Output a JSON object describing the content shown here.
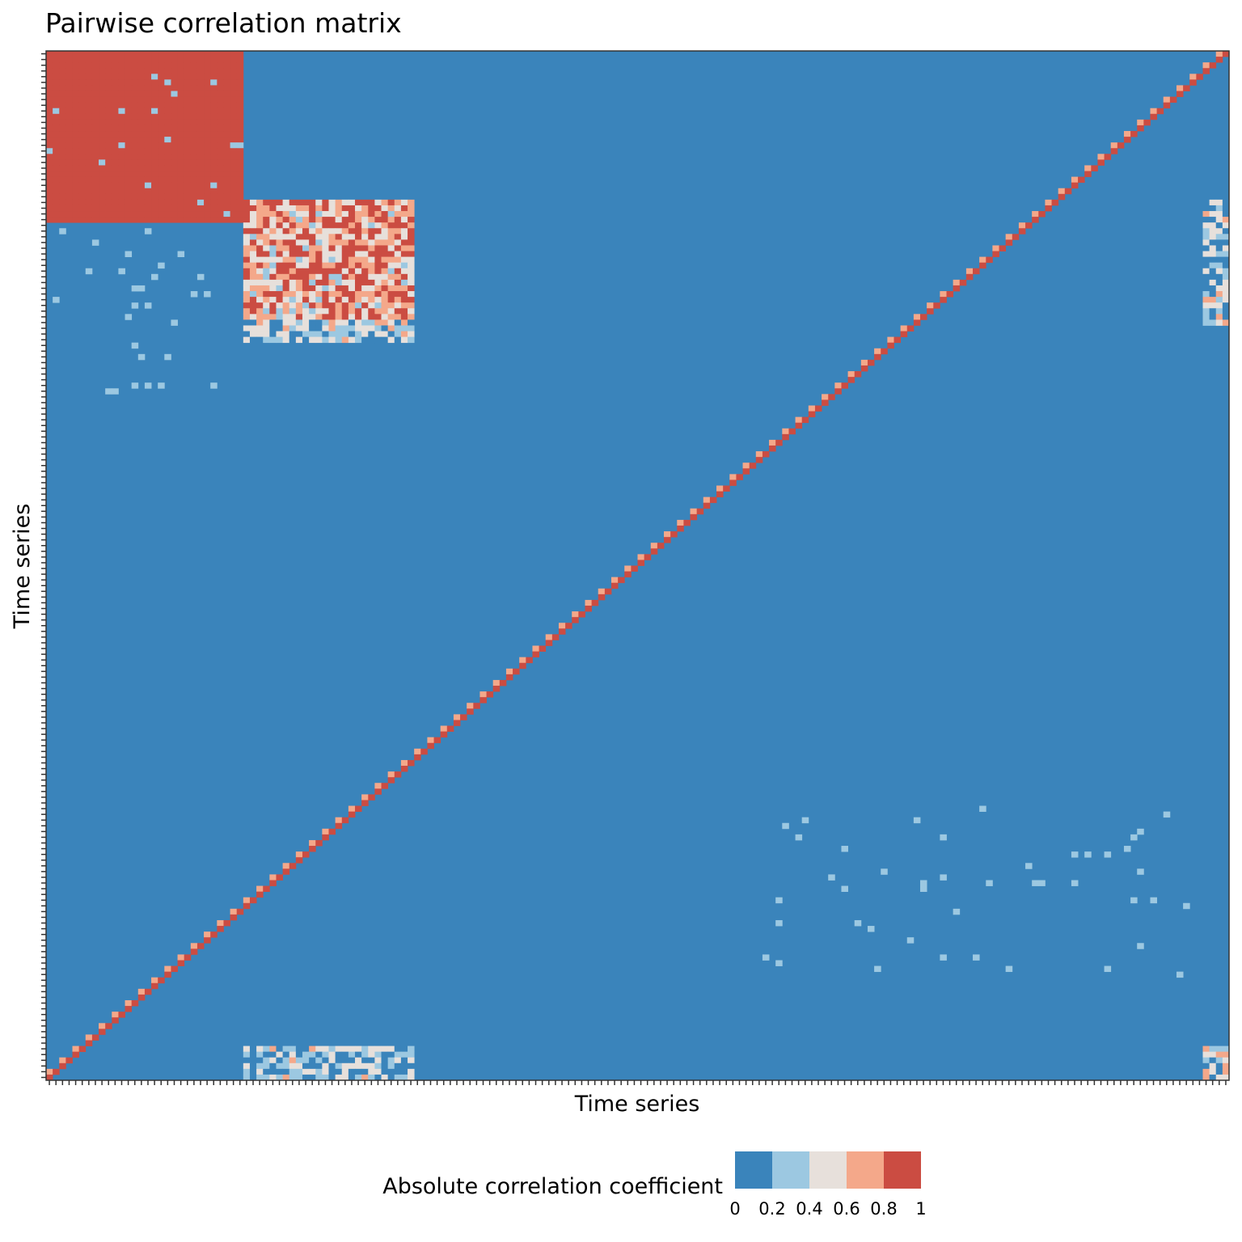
{
  "chart_data": {
    "type": "heatmap",
    "title": "Pairwise correlation matrix",
    "xlabel": "Time series",
    "ylabel": "Time series",
    "n_series": 180,
    "grid": false,
    "colorbar": {
      "title": "Absolute correlation coefficient",
      "placement": "bottom",
      "bins": [
        {
          "from": 0.0,
          "to": 0.2,
          "color": "#3A84BB"
        },
        {
          "from": 0.2,
          "to": 0.4,
          "color": "#9CC8E1"
        },
        {
          "from": 0.4,
          "to": 0.6,
          "color": "#E7E0DB"
        },
        {
          "from": 0.6,
          "to": 0.8,
          "color": "#F4A88A"
        },
        {
          "from": 0.8,
          "to": 1.0,
          "color": "#CB4C42"
        }
      ],
      "tick_labels": [
        "0",
        "0.2",
        "0.4",
        "0.6",
        "0.8",
        "1"
      ]
    },
    "background_value": 0.1,
    "blocks": [
      {
        "rows": [
          0,
          29
        ],
        "cols": [
          0,
          29
        ],
        "value": 0.95,
        "description": "fully correlated cluster"
      },
      {
        "rows": [
          26,
          47
        ],
        "cols": [
          30,
          55
        ],
        "value": 0.7,
        "mixed": true
      },
      {
        "rows": [
          47,
          50
        ],
        "cols": [
          30,
          55
        ],
        "value": 0.3,
        "mixed": true
      },
      {
        "rows": [
          174,
          179
        ],
        "cols": [
          30,
          55
        ],
        "value": 0.3,
        "mixed": true
      },
      {
        "rows": [
          26,
          47
        ],
        "cols": [
          176,
          179
        ],
        "value": 0.3,
        "mixed": true
      },
      {
        "rows": [
          174,
          179
        ],
        "cols": [
          176,
          179
        ],
        "value": 0.4,
        "mixed": true
      }
    ],
    "diagonal_value": 1.0
  }
}
